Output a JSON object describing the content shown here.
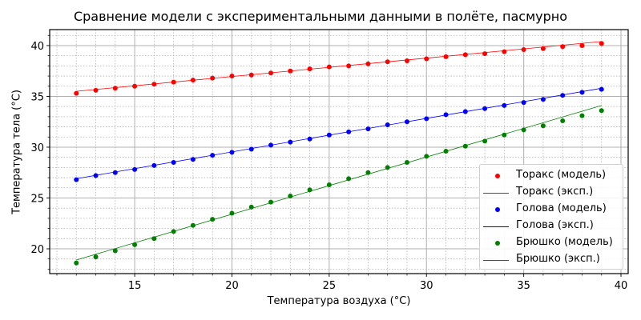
{
  "chart_data": {
    "type": "scatter",
    "title": "Сравнение модели с экспериментальными данными в полёте, пасмурно",
    "xlabel": "Температура воздуха (°C)",
    "ylabel": "Температура тела (°C)",
    "xlim": [
      10.63,
      40.37
    ],
    "ylim": [
      17.56,
      41.57
    ],
    "xticks": [
      15,
      20,
      25,
      30,
      35,
      40
    ],
    "yticks": [
      20,
      25,
      30,
      35,
      40
    ],
    "grid": {
      "major": true,
      "minor": true
    },
    "legend_position": "lower right",
    "x": [
      12,
      13,
      14,
      15,
      16,
      17,
      18,
      19,
      20,
      21,
      22,
      23,
      24,
      25,
      26,
      27,
      28,
      29,
      30,
      31,
      32,
      33,
      34,
      35,
      36,
      37,
      38,
      39
    ],
    "series": [
      {
        "name": "Торакс (модель)",
        "kind": "points",
        "color": "#ff0000",
        "values": [
          35.3,
          35.6,
          35.8,
          36.0,
          36.2,
          36.4,
          36.6,
          36.8,
          37.0,
          37.1,
          37.3,
          37.5,
          37.7,
          37.9,
          38.0,
          38.2,
          38.4,
          38.5,
          38.7,
          38.9,
          39.1,
          39.2,
          39.4,
          39.6,
          39.7,
          39.9,
          40.0,
          40.2
        ]
      },
      {
        "name": "Торакс (эксп.)",
        "kind": "line",
        "color": "#ff0000",
        "x": [
          12,
          39
        ],
        "values": [
          35.5,
          40.4
        ]
      },
      {
        "name": "Голова (модель)",
        "kind": "points",
        "color": "#0000ff",
        "values": [
          26.8,
          27.2,
          27.5,
          27.8,
          28.2,
          28.5,
          28.8,
          29.2,
          29.5,
          29.8,
          30.2,
          30.5,
          30.8,
          31.2,
          31.5,
          31.8,
          32.2,
          32.5,
          32.8,
          33.2,
          33.5,
          33.8,
          34.1,
          34.4,
          34.7,
          35.1,
          35.4,
          35.7
        ]
      },
      {
        "name": "Голова (эксп.)",
        "kind": "line",
        "color": "#0000ff",
        "x": [
          12,
          39
        ],
        "values": [
          26.9,
          35.8
        ]
      },
      {
        "name": "Брюшко (модель)",
        "kind": "points",
        "color": "#008000",
        "values": [
          18.6,
          19.2,
          19.8,
          20.4,
          21.0,
          21.7,
          22.3,
          22.9,
          23.5,
          24.1,
          24.6,
          25.2,
          25.8,
          26.3,
          26.9,
          27.5,
          28.0,
          28.5,
          29.1,
          29.6,
          30.1,
          30.6,
          31.2,
          31.7,
          32.1,
          32.6,
          33.1,
          33.6
        ]
      },
      {
        "name": "Брюшко (эксп.)",
        "kind": "line",
        "color": "#008000",
        "x": [
          12,
          39
        ],
        "values": [
          18.9,
          34.1
        ]
      }
    ]
  }
}
